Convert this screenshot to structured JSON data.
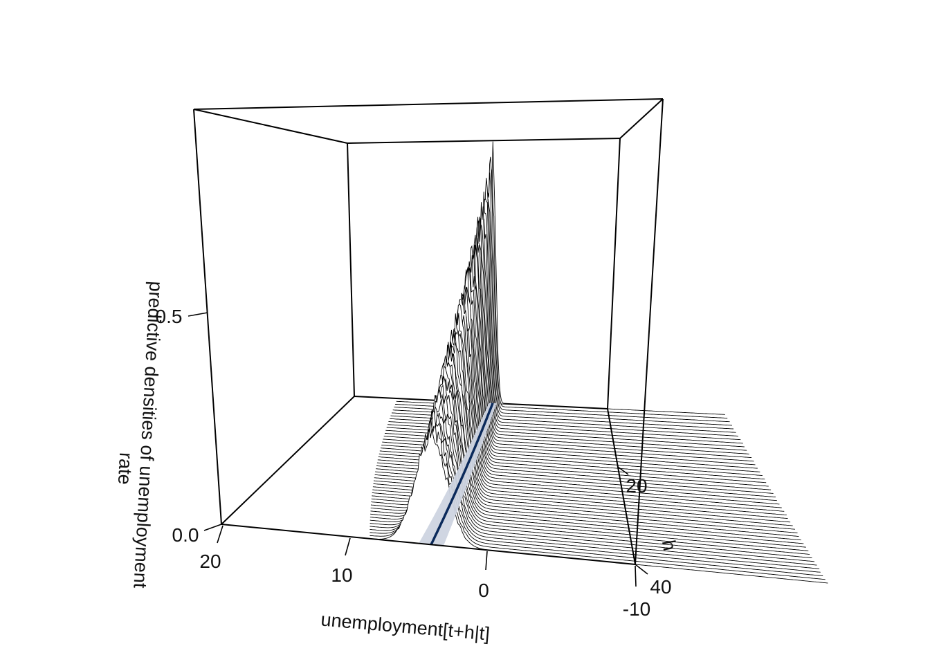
{
  "chart_data": {
    "type": "3d-ridgeline",
    "description_of_axes": {
      "x_axis_title": "unemployment[t+h|t]",
      "y_axis_title": "h",
      "z_axis_title_line1": "predictive densities of unemployment",
      "z_axis_title_line2": "rate"
    },
    "x_ticks": [
      "20",
      "10",
      "0",
      "-10"
    ],
    "y_ticks": [
      "20",
      "40"
    ],
    "z_ticks": [
      "0.0",
      "0.5"
    ],
    "xlim": [
      -10,
      20
    ],
    "hlim": [
      1,
      48
    ],
    "zlim": [
      0,
      1
    ],
    "horizons": 48,
    "peak_density_h1": 0.97,
    "peak_density_h48": 0.26,
    "point_forecast_h1": 3.6,
    "point_forecast_h48": 4.8,
    "interval_half_width_h1": 0.45,
    "interval_half_width_h48": 0.9,
    "colors": {
      "box": "#000000",
      "ridges": "#000000",
      "point_forecast": "#0b2a5b",
      "interval_band": "#cdd4e0"
    }
  }
}
